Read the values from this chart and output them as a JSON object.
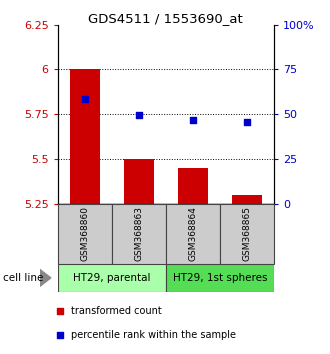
{
  "title": "GDS4511 / 1553690_at",
  "samples": [
    "GSM368860",
    "GSM368863",
    "GSM368864",
    "GSM368865"
  ],
  "bar_values": [
    6.0,
    5.5,
    5.45,
    5.3
  ],
  "bar_baseline": 5.25,
  "blue_values": [
    5.835,
    5.748,
    5.718,
    5.705
  ],
  "ylim_left": [
    5.25,
    6.25
  ],
  "ylim_right": [
    0,
    100
  ],
  "yticks_left": [
    5.25,
    5.5,
    5.75,
    6.0,
    6.25
  ],
  "yticks_right": [
    0,
    25,
    50,
    75,
    100
  ],
  "ytick_labels_left": [
    "5.25",
    "5.5",
    "5.75",
    "6",
    "6.25"
  ],
  "ytick_labels_right": [
    "0",
    "25",
    "50",
    "75",
    "100%"
  ],
  "bar_color": "#cc0000",
  "blue_color": "#0000cc",
  "cell_line_groups": [
    {
      "label": "HT29, parental",
      "indices": [
        0,
        1
      ],
      "color": "#aaffaa"
    },
    {
      "label": "HT29, 1st spheres",
      "indices": [
        2,
        3
      ],
      "color": "#55dd55"
    }
  ],
  "cell_line_label": "cell line",
  "legend_items": [
    {
      "label": "transformed count",
      "color": "#cc0000"
    },
    {
      "label": "percentile rank within the sample",
      "color": "#0000cc"
    }
  ],
  "grid_yticks": [
    5.5,
    5.75,
    6.0
  ],
  "sample_box_color": "#cccccc",
  "sample_box_border": "#444444",
  "bar_width": 0.55
}
